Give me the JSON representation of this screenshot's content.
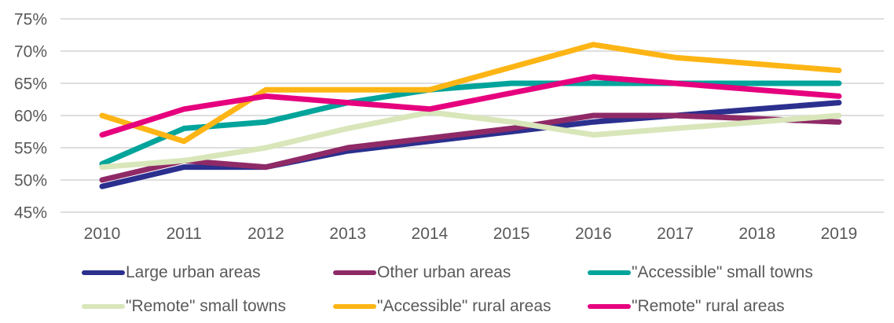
{
  "chart_data": {
    "type": "line",
    "title": "",
    "xlabel": "",
    "ylabel": "",
    "x": [
      2010,
      2011,
      2012,
      2013,
      2014,
      2015,
      2016,
      2017,
      2018,
      2019
    ],
    "x_tick_labels": [
      "2010",
      "2011",
      "2012",
      "2013",
      "2014",
      "2015",
      "2016",
      "2017",
      "2018",
      "2019"
    ],
    "ylim": [
      45,
      75
    ],
    "y_tick_values": [
      75,
      70,
      65,
      60,
      55,
      50,
      45
    ],
    "y_tick_labels": [
      "75%",
      "70%",
      "65%",
      "60%",
      "55%",
      "50%",
      "45%"
    ],
    "grid": "horizontal",
    "legend_position": "bottom",
    "series": [
      {
        "name": "Large urban areas",
        "color": "#2b2f8e",
        "values": [
          49,
          52,
          52,
          54.5,
          56,
          57.5,
          59,
          60,
          61,
          62
        ]
      },
      {
        "name": "Other urban areas",
        "color": "#8f2a67",
        "values": [
          50,
          53,
          52,
          55,
          56.5,
          58,
          60,
          60,
          59.5,
          59
        ]
      },
      {
        "name": "\"Accessible\" small towns",
        "color": "#00a49a",
        "values": [
          52.5,
          58,
          59,
          62,
          64,
          65,
          65,
          65,
          65,
          65
        ]
      },
      {
        "name": "\"Remote\" small towns",
        "color": "#d8e6ba",
        "values": [
          52,
          53,
          55,
          58,
          60.5,
          59,
          57,
          58,
          59,
          60
        ]
      },
      {
        "name": "\"Accessible\" rural areas",
        "color": "#fdb515",
        "values": [
          60,
          56,
          64,
          64,
          64,
          67.5,
          71,
          69,
          68,
          67
        ]
      },
      {
        "name": "\"Remote\" rural areas",
        "color": "#e6007e",
        "values": [
          57,
          61,
          63,
          62,
          61,
          63.5,
          66,
          65,
          64,
          63
        ]
      }
    ]
  },
  "colors": {
    "axis_text": "#595959",
    "gridline": "#d9d9d9",
    "background": "#ffffff"
  }
}
